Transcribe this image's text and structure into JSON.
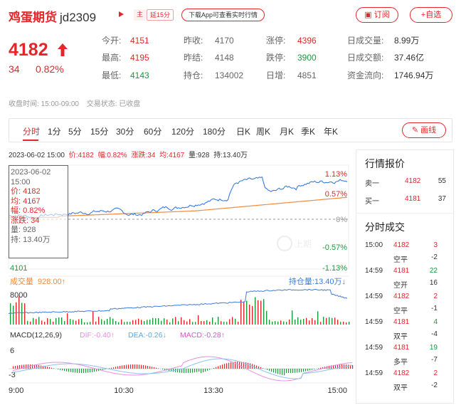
{
  "header": {
    "name": "鸡蛋期货",
    "code": "jd2309",
    "tag_main": "主",
    "tag_delay": "延15分",
    "app_link": "下载App可查看实时行情",
    "subscribe_label": "订阅",
    "favorite_label": "+自选"
  },
  "quote": {
    "price": "4182",
    "change": "34",
    "change_pct": "0.82%"
  },
  "stats": [
    {
      "label": "今开:",
      "value": "4151",
      "color": "red"
    },
    {
      "label": "昨收:",
      "value": "4170",
      "color": "gray"
    },
    {
      "label": "涨停:",
      "value": "4396",
      "color": "red"
    },
    {
      "label": "日成交量:",
      "value": "8.99万",
      "color": "dark"
    },
    {
      "label": "最高:",
      "value": "4195",
      "color": "red"
    },
    {
      "label": "昨结:",
      "value": "4148",
      "color": "gray"
    },
    {
      "label": "跌停:",
      "value": "3900",
      "color": "green"
    },
    {
      "label": "日成交额:",
      "value": "37.46亿",
      "color": "dark"
    },
    {
      "label": "最低:",
      "value": "4143",
      "color": "green"
    },
    {
      "label": "持仓:",
      "value": "134002",
      "color": "gray"
    },
    {
      "label": "日增:",
      "value": "4851",
      "color": "gray"
    },
    {
      "label": "资金流向:",
      "value": "1746.94万",
      "color": "dark"
    }
  ],
  "time_info": {
    "close_time_label": "收盘时间:",
    "close_time": "15:00-09:00",
    "trade_state_label": "交易状态:",
    "trade_state": "已收盘"
  },
  "periods": [
    "分时",
    "1分",
    "5分",
    "15分",
    "30分",
    "60分",
    "120分",
    "180分",
    "日K",
    "周K",
    "月K",
    "季K",
    "年K"
  ],
  "active_period": "分时",
  "draw_label": "画线",
  "info_line": {
    "datetime": "2023-06-02 15:00",
    "price": "价:4182",
    "amp": "幅:0.82%",
    "change": "涨跌:34",
    "avg": "均:4167",
    "volume": "量:928",
    "hold": "持:13.40万"
  },
  "tooltip": {
    "date": "2023-06-02",
    "time": "15:00",
    "price": "价: 4182",
    "avg": "均: 4167",
    "amp": "幅: 0.82%",
    "change": "涨跌: 34",
    "volume": "量: 928",
    "hold": "持: 13.40万"
  },
  "price_chart": {
    "pct_up_high": "1.13%",
    "pct_up_mid": "0.57%",
    "pct_zero": "0%",
    "pct_down_mid": "-0.57%",
    "pct_down_low": "-1.13%",
    "low_price": "4101",
    "watermark": "上期"
  },
  "volume_chart": {
    "label": "成交量",
    "value": "928.00",
    "hold_label": "持仓量:13.40万",
    "ymax": "8000"
  },
  "macd_chart": {
    "title": "MACD(12,26,9)",
    "dif": "DIF:-0.40",
    "dea": "DEA:-0.26",
    "macd": "MACD:-0.28",
    "ytop": "6",
    "ybottom": "-3"
  },
  "time_axis": [
    "9:00",
    "10:30",
    "13:30",
    "15:00"
  ],
  "market_quote": {
    "title": "行情报价",
    "sell": {
      "label": "卖一",
      "price": "4182",
      "qty": "55"
    },
    "buy": {
      "label": "买一",
      "price": "4181",
      "qty": "37"
    }
  },
  "trades": {
    "title": "分时成交",
    "rows": [
      {
        "time": "15:00",
        "price": "4182",
        "qty": "3",
        "type": "空平",
        "diff": "-2",
        "pcolor": "red",
        "qcolor": "red"
      },
      {
        "time": "14:59",
        "price": "4181",
        "qty": "22",
        "type": "空开",
        "diff": "16",
        "pcolor": "red",
        "qcolor": "green"
      },
      {
        "time": "14:59",
        "price": "4182",
        "qty": "2",
        "type": "空平",
        "diff": "-1",
        "pcolor": "red",
        "qcolor": "red"
      },
      {
        "time": "14:59",
        "price": "4181",
        "qty": "4",
        "type": "双平",
        "diff": "-4",
        "pcolor": "red",
        "qcolor": "green"
      },
      {
        "time": "14:59",
        "price": "4181",
        "qty": "19",
        "type": "多平",
        "diff": "-7",
        "pcolor": "red",
        "qcolor": "green"
      },
      {
        "time": "14:59",
        "price": "4182",
        "qty": "2",
        "type": "双平",
        "diff": "-2",
        "pcolor": "red",
        "qcolor": "red"
      }
    ]
  },
  "colors": {
    "red": "#e4262b",
    "green": "#1a9a3c",
    "price_line": "#3a7ce0",
    "avg_line": "#f08a3c",
    "dif_line": "#e98de0",
    "dea_line": "#8cc3f0"
  }
}
